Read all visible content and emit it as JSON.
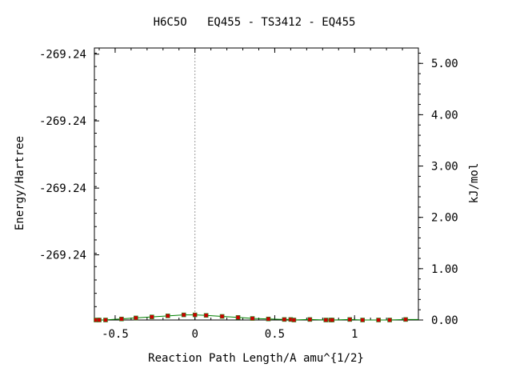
{
  "chart_data": {
    "type": "line",
    "title": "H6C5O   EQ455 - TS3412 - EQ455",
    "xlabel": "Reaction Path Length/A amu^{1/2}",
    "ylabel_left": "Energy/Hartree",
    "ylabel_right": "kJ/mol",
    "xlim": [
      -0.63,
      1.4
    ],
    "x_ticks": [
      -0.5,
      0,
      0.5,
      1
    ],
    "x_tick_labels": [
      "-0.5",
      "0",
      "0.5",
      "1"
    ],
    "y_right_lim": [
      0,
      5.3
    ],
    "y_right_ticks": [
      0,
      1,
      2,
      3,
      4,
      5
    ],
    "y_right_tick_labels": [
      "0.00",
      "1.00",
      "2.00",
      "3.00",
      "4.00",
      "5.00"
    ],
    "y_left_tick_labels": [
      "-269.24",
      "-269.24",
      "-269.24",
      "-269.24"
    ],
    "y_left_tick_values_kj": [
      1.27,
      2.57,
      3.88,
      5.18
    ],
    "ts_marker_x": 0,
    "grid": false,
    "series": [
      {
        "color": "#008000",
        "x": [
          -0.63,
          -0.6,
          -0.57,
          -0.47,
          -0.37,
          -0.27,
          -0.17,
          -0.07,
          0,
          0.07,
          0.17,
          0.27,
          0.37,
          0.47,
          0.57,
          0.6,
          0.62,
          0.72,
          0.82,
          0.85,
          0.87,
          0.97,
          1.05,
          1.15,
          1.22,
          1.32,
          1.4
        ],
        "y": [
          0.0,
          0.0,
          0.0,
          0.02,
          0.04,
          0.06,
          0.08,
          0.1,
          0.1,
          0.09,
          0.07,
          0.05,
          0.03,
          0.02,
          0.01,
          0.01,
          0.0,
          0.01,
          0.0,
          0.0,
          0.0,
          0.01,
          0.0,
          0.0,
          0.0,
          0.01,
          0.01
        ]
      }
    ],
    "points": {
      "color": "#cc0000",
      "x": [
        -0.62,
        -0.6,
        -0.56,
        -0.46,
        -0.37,
        -0.27,
        -0.17,
        -0.07,
        0,
        0.07,
        0.17,
        0.27,
        0.36,
        0.46,
        0.56,
        0.6,
        0.62,
        0.72,
        0.82,
        0.85,
        0.86,
        0.97,
        1.05,
        1.15,
        1.22,
        1.32
      ],
      "y": [
        0.0,
        0.0,
        0.0,
        0.02,
        0.04,
        0.06,
        0.08,
        0.1,
        0.1,
        0.09,
        0.07,
        0.05,
        0.03,
        0.02,
        0.01,
        0.01,
        0.0,
        0.01,
        0.0,
        0.0,
        0.0,
        0.01,
        0.0,
        0.0,
        0.0,
        0.01
      ]
    }
  }
}
